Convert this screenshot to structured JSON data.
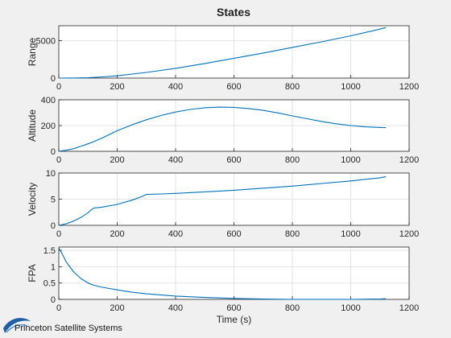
{
  "figure": {
    "title": "States",
    "logo_text": "Princeton Satellite Systems",
    "background": "#f0f0f0",
    "axes_background": "#ffffff",
    "line_color": "#0072bd",
    "grid_color": "#e3e3e3"
  },
  "chart_data": [
    {
      "type": "line",
      "title": "States",
      "xlabel": "",
      "ylabel": "Range",
      "xlim": [
        0,
        1200
      ],
      "ylim": [
        0,
        7000
      ],
      "xticks": [
        0,
        200,
        400,
        600,
        800,
        1000,
        1200
      ],
      "yticks": [
        0,
        5000
      ],
      "grid": true,
      "series": [
        {
          "x": [
            0,
            50,
            100,
            150,
            200,
            300,
            400,
            500,
            600,
            700,
            800,
            900,
            1000,
            1100,
            1120
          ],
          "values": [
            0,
            8,
            40,
            160,
            300,
            750,
            1300,
            1950,
            2650,
            3350,
            4100,
            4850,
            5650,
            6550,
            6750
          ]
        }
      ]
    },
    {
      "type": "line",
      "xlabel": "",
      "ylabel": "Altitude",
      "xlim": [
        0,
        1200
      ],
      "ylim": [
        0,
        400
      ],
      "xticks": [
        0,
        200,
        400,
        600,
        800,
        1000,
        1200
      ],
      "yticks": [
        0,
        200,
        400
      ],
      "grid": true,
      "series": [
        {
          "x": [
            0,
            25,
            50,
            75,
            100,
            120,
            150,
            200,
            250,
            300,
            350,
            400,
            450,
            500,
            550,
            600,
            650,
            700,
            750,
            800,
            850,
            900,
            950,
            1000,
            1050,
            1100,
            1120
          ],
          "values": [
            0,
            8,
            20,
            38,
            58,
            75,
            105,
            160,
            205,
            245,
            278,
            305,
            325,
            338,
            343,
            341,
            332,
            318,
            298,
            275,
            253,
            232,
            214,
            200,
            190,
            185,
            184
          ]
        }
      ]
    },
    {
      "type": "line",
      "xlabel": "",
      "ylabel": "Velocity",
      "xlim": [
        0,
        1200
      ],
      "ylim": [
        0,
        10
      ],
      "xticks": [
        0,
        200,
        400,
        600,
        800,
        1000,
        1200
      ],
      "yticks": [
        0,
        5,
        10
      ],
      "grid": true,
      "series": [
        {
          "x": [
            0,
            25,
            50,
            75,
            100,
            110,
            120,
            150,
            200,
            250,
            280,
            300,
            350,
            400,
            500,
            600,
            700,
            800,
            900,
            1000,
            1100,
            1120
          ],
          "values": [
            0,
            0.3,
            0.8,
            1.5,
            2.4,
            2.9,
            3.3,
            3.5,
            4.0,
            4.8,
            5.4,
            5.9,
            6.0,
            6.1,
            6.4,
            6.7,
            7.1,
            7.5,
            8.0,
            8.5,
            9.1,
            9.3
          ]
        }
      ]
    },
    {
      "type": "line",
      "xlabel": "Time (s)",
      "ylabel": "FPA",
      "xlim": [
        0,
        1200
      ],
      "ylim": [
        0,
        1.6
      ],
      "xticks": [
        0,
        200,
        400,
        600,
        800,
        1000,
        1200
      ],
      "yticks": [
        0,
        0.5,
        1,
        1.5
      ],
      "grid": true,
      "series": [
        {
          "x": [
            0,
            10,
            25,
            50,
            75,
            100,
            120,
            150,
            200,
            250,
            300,
            400,
            500,
            600,
            700,
            800,
            900,
            1000,
            1100,
            1120
          ],
          "values": [
            1.57,
            1.42,
            1.15,
            0.85,
            0.64,
            0.5,
            0.43,
            0.37,
            0.29,
            0.22,
            0.17,
            0.1,
            0.06,
            0.03,
            0.01,
            0.0,
            0.0,
            0.0,
            0.01,
            0.02
          ]
        }
      ]
    }
  ]
}
